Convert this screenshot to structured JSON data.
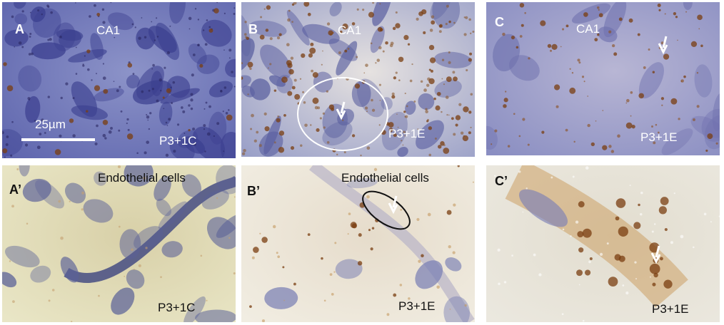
{
  "panels": [
    {
      "letter": "A",
      "region": "CA1",
      "condition": "P3+1C",
      "scale_bar": "25µm"
    },
    {
      "letter": "B",
      "region": "CA1",
      "condition": "P3+1E"
    },
    {
      "letter": "C",
      "region": "CA1",
      "condition": "P3+1E"
    },
    {
      "letter": "A’",
      "region": "Endothelial cells",
      "condition": "P3+1C"
    },
    {
      "letter": "B’",
      "region": "Endothelial cells",
      "condition": "P3+1E"
    },
    {
      "letter": "C’",
      "condition": "P3+1E"
    }
  ]
}
